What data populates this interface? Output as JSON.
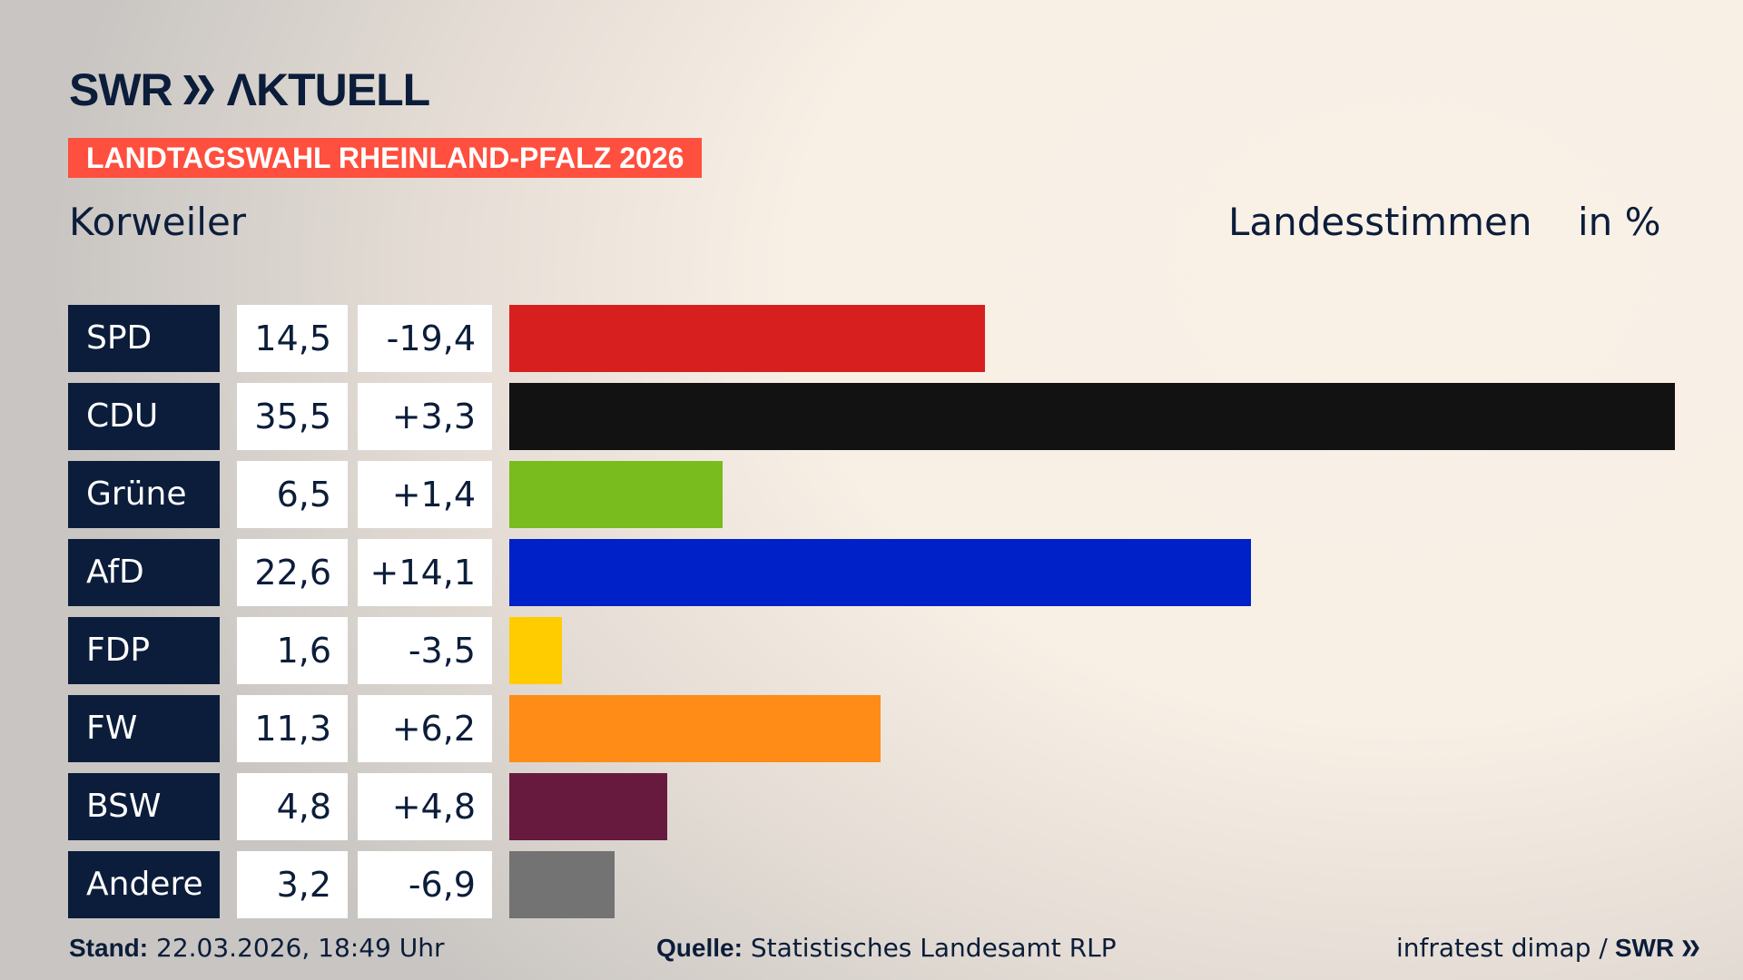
{
  "header": {
    "logo": "SWR AKTUELL",
    "banner": "LANDTAGSWAHL RHEINLAND-PFALZ 2026",
    "place": "Korweiler",
    "metric": "Landesstimmen",
    "unit": "in %"
  },
  "chart_data": {
    "type": "bar",
    "orientation": "horizontal",
    "categories": [
      "SPD",
      "CDU",
      "Grüne",
      "AfD",
      "FDP",
      "FW",
      "BSW",
      "Andere"
    ],
    "values": [
      14.5,
      35.5,
      6.5,
      22.6,
      1.6,
      11.3,
      4.8,
      3.2
    ],
    "value_labels": [
      "14,5",
      "35,5",
      "6,5",
      "22,6",
      "1,6",
      "11,3",
      "4,8",
      "3,2"
    ],
    "diff_labels": [
      "-19,4",
      "+3,3",
      "+1,4",
      "+14,1",
      "-3,5",
      "+6,2",
      "+4,8",
      "-6,9"
    ],
    "colors": [
      "#d81f1f",
      "#121212",
      "#78bc1d",
      "#0020c8",
      "#ffcc00",
      "#ff8c16",
      "#681a3e",
      "#737373"
    ],
    "xlim": [
      0,
      35.5
    ],
    "grid": false
  },
  "footer": {
    "stand_label": "Stand:",
    "stand_value": "22.03.2026, 18:49 Uhr",
    "source_label": "Quelle:",
    "source_value": "Statistisches Landesamt RLP",
    "credit": "infratest dimap /",
    "credit_logo": "SWR"
  }
}
